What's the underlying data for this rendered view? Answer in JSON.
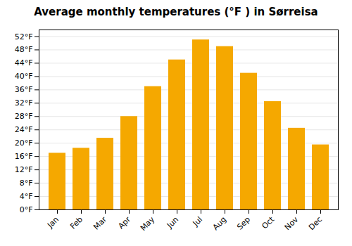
{
  "chart_data": {
    "type": "bar",
    "title": "Average monthly temperatures (°F ) in Sørreisa",
    "categories": [
      "Jan",
      "Feb",
      "Mar",
      "Apr",
      "May",
      "Jun",
      "Jul",
      "Aug",
      "Sep",
      "Oct",
      "Nov",
      "Dec"
    ],
    "values": [
      17,
      18.5,
      21.5,
      28,
      37,
      45,
      51,
      49,
      41,
      32.5,
      24.5,
      19.5
    ],
    "color": "#F5A800",
    "ylim": [
      0,
      54
    ],
    "yticks": [
      {
        "value": 0,
        "label": "0°F"
      },
      {
        "value": 4,
        "label": "4°F"
      },
      {
        "value": 8,
        "label": "8°F"
      },
      {
        "value": 12,
        "label": "12°F"
      },
      {
        "value": 16,
        "label": "16°F"
      },
      {
        "value": 20,
        "label": "20°F"
      },
      {
        "value": 24,
        "label": "24°F"
      },
      {
        "value": 28,
        "label": "28°F"
      },
      {
        "value": 32,
        "label": "32°F"
      },
      {
        "value": 36,
        "label": "36°F"
      },
      {
        "value": 40,
        "label": "40°F"
      },
      {
        "value": 44,
        "label": "44°F"
      },
      {
        "value": 48,
        "label": "48°F"
      },
      {
        "value": 52,
        "label": "52°F"
      }
    ],
    "grid": true
  }
}
